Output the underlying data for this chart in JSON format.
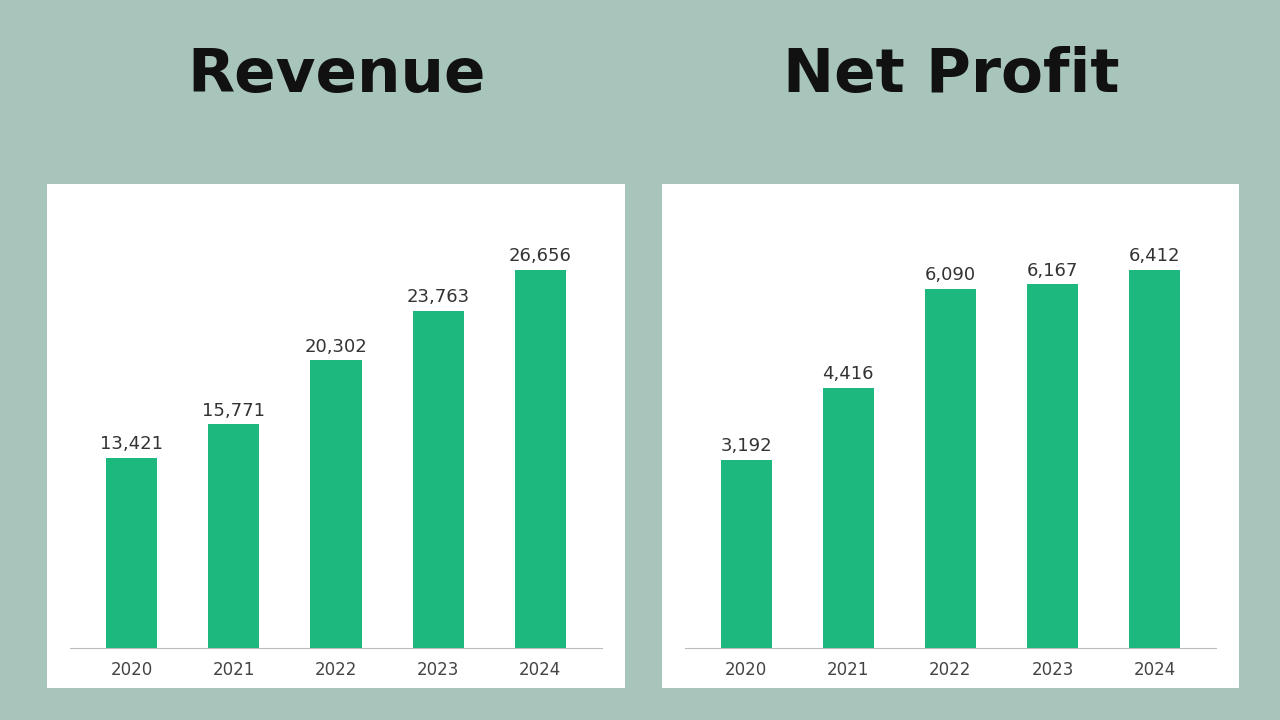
{
  "background_color": "#a8c5bc",
  "chart_bg": "#ffffff",
  "bar_color": "#1db87e",
  "years": [
    "2020",
    "2021",
    "2022",
    "2023",
    "2024"
  ],
  "revenue": [
    13421,
    15771,
    20302,
    23763,
    26656
  ],
  "net_profit": [
    3192,
    4416,
    6090,
    6167,
    6412
  ],
  "revenue_title": "Revenue",
  "profit_title": "Net Profit",
  "title_fontsize": 44,
  "value_fontsize": 13,
  "tick_fontsize": 12,
  "label_color": "#444444",
  "value_color": "#333333",
  "title_color": "#111111"
}
